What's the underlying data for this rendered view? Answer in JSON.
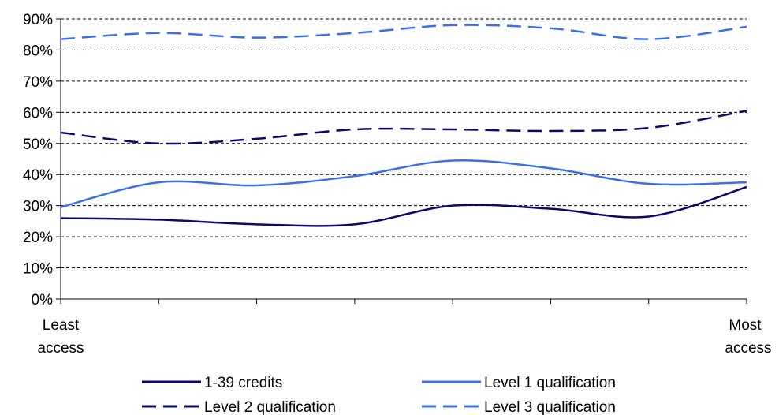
{
  "chart_data": {
    "type": "line",
    "x": [
      1,
      2,
      3,
      4,
      5,
      6,
      7,
      8
    ],
    "x_labels": {
      "first": [
        "Least",
        "access"
      ],
      "last": [
        "Most",
        "access"
      ]
    },
    "ylim": [
      0,
      0.9
    ],
    "yticks": [
      0,
      0.1,
      0.2,
      0.3,
      0.4,
      0.5,
      0.6,
      0.7,
      0.8,
      0.9
    ],
    "ytick_labels": [
      "0%",
      "10%",
      "20%",
      "30%",
      "40%",
      "50%",
      "60%",
      "70%",
      "80%",
      "90%"
    ],
    "grid": "horizontal-dashed",
    "legend_position": "bottom",
    "series": [
      {
        "name": "1-39 credits",
        "color": "#0a0a6e",
        "dash": "solid",
        "values": [
          0.26,
          0.255,
          0.24,
          0.24,
          0.3,
          0.29,
          0.265,
          0.36
        ]
      },
      {
        "name": "Level 1 qualification",
        "color": "#3d6fe8",
        "dash": "solid",
        "values": [
          0.295,
          0.375,
          0.365,
          0.395,
          0.445,
          0.42,
          0.37,
          0.375
        ]
      },
      {
        "name": "Level 2 qualification",
        "color": "#0a0a6e",
        "dash": "dashed",
        "values": [
          0.535,
          0.5,
          0.515,
          0.545,
          0.545,
          0.54,
          0.55,
          0.605
        ]
      },
      {
        "name": "Level 3 qualification",
        "color": "#3d6fe8",
        "dash": "dashed",
        "values": [
          0.835,
          0.855,
          0.84,
          0.855,
          0.88,
          0.87,
          0.835,
          0.875
        ]
      }
    ]
  }
}
